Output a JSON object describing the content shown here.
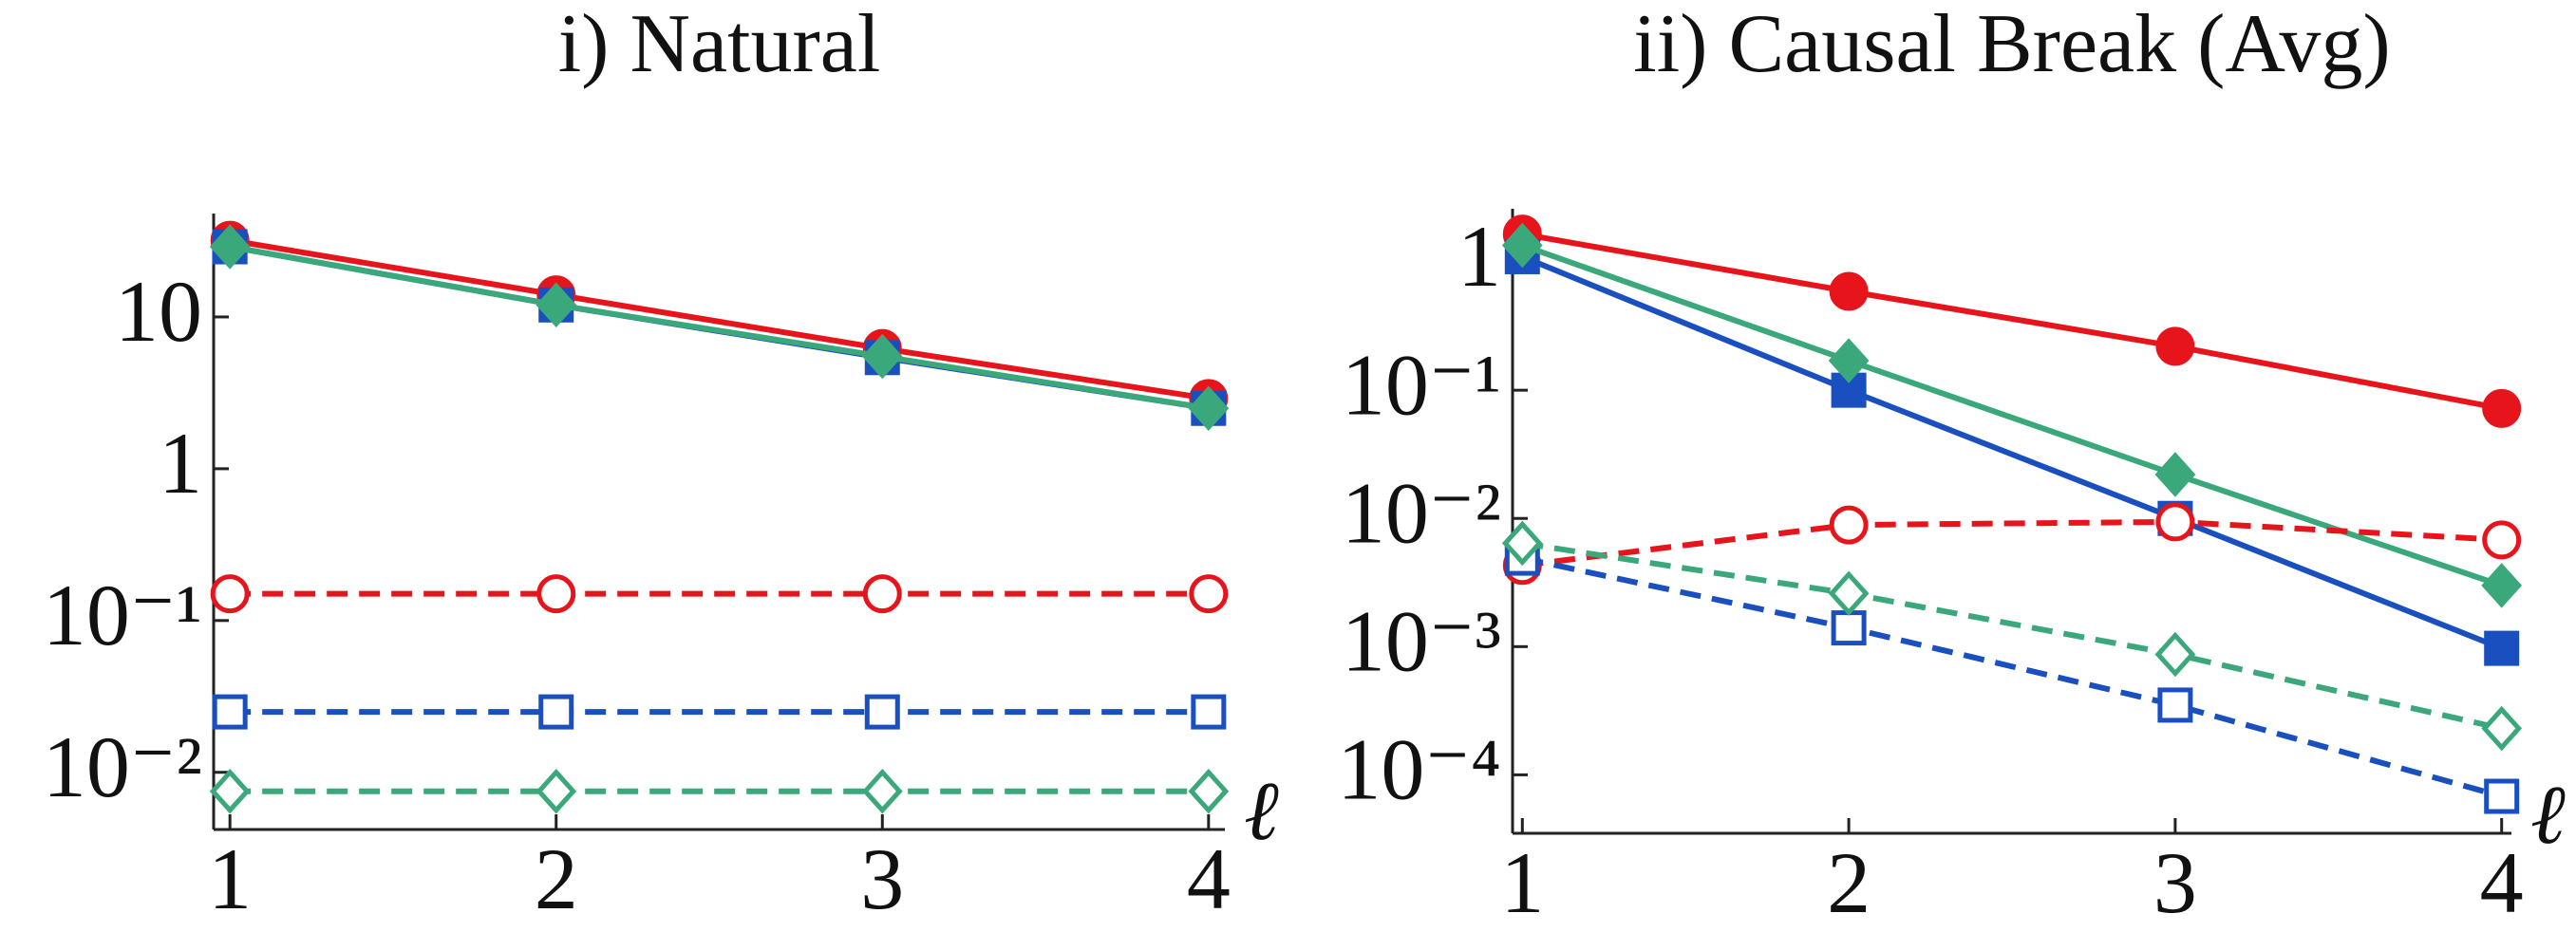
{
  "chart_data": [
    {
      "type": "line",
      "title": "i) Natural",
      "xlabel": "ℓ",
      "log_y": true,
      "x": [
        1,
        2,
        3,
        4
      ],
      "xlim": [
        0.95,
        4.05
      ],
      "xticks": [
        1,
        2,
        3,
        4
      ],
      "ylim": [
        0.0042,
        48
      ],
      "yticks": [
        10,
        1,
        {
          "value": 0.1,
          "label": "10⁻¹"
        },
        {
          "value": 0.01,
          "label": "10⁻²"
        }
      ],
      "series": [
        {
          "color": "#e8141c",
          "marker": "circle",
          "filled": true,
          "dash": false,
          "values": [
            32,
            14,
            6.2,
            2.9
          ]
        },
        {
          "color": "#1a4fbf",
          "marker": "square",
          "filled": true,
          "dash": false,
          "values": [
            29,
            12,
            5.4,
            2.5
          ]
        },
        {
          "color": "#3aa87a",
          "marker": "diamond",
          "filled": true,
          "dash": false,
          "values": [
            29,
            12,
            5.5,
            2.5
          ]
        },
        {
          "color": "#e8141c",
          "marker": "circle",
          "filled": false,
          "dash": true,
          "values": [
            0.15,
            0.15,
            0.15,
            0.15
          ]
        },
        {
          "color": "#1a4fbf",
          "marker": "square",
          "filled": false,
          "dash": true,
          "values": [
            0.025,
            0.025,
            0.025,
            0.025
          ]
        },
        {
          "color": "#3aa87a",
          "marker": "diamond",
          "filled": false,
          "dash": true,
          "values": [
            0.0075,
            0.0075,
            0.0075,
            0.0075
          ]
        }
      ]
    },
    {
      "type": "line",
      "title": "ii) Causal Break (Avg)",
      "xlabel": "ℓ",
      "log_y": true,
      "x": [
        1,
        2,
        3,
        4
      ],
      "xlim": [
        0.97,
        4.03
      ],
      "xticks": [
        1,
        2,
        3,
        4
      ],
      "ylim": [
        3.5e-05,
        2.6
      ],
      "yticks": [
        1,
        {
          "value": 0.1,
          "label": "10⁻¹"
        },
        {
          "value": 0.01,
          "label": "10⁻²"
        },
        {
          "value": 0.001,
          "label": "10⁻³"
        },
        {
          "value": 0.0001,
          "label": "10⁻⁴"
        }
      ],
      "series": [
        {
          "color": "#e8141c",
          "marker": "circle",
          "filled": true,
          "dash": false,
          "values": [
            1.65,
            0.59,
            0.22,
            0.072
          ]
        },
        {
          "color": "#1a4fbf",
          "marker": "square",
          "filled": true,
          "dash": false,
          "values": [
            1.1,
            0.1,
            0.01,
            0.00097
          ]
        },
        {
          "color": "#3aa87a",
          "marker": "diamond",
          "filled": true,
          "dash": false,
          "values": [
            1.35,
            0.17,
            0.022,
            0.003
          ]
        },
        {
          "color": "#e8141c",
          "marker": "circle",
          "filled": false,
          "dash": true,
          "values": [
            0.0043,
            0.0089,
            0.0094,
            0.0068
          ]
        },
        {
          "color": "#1a4fbf",
          "marker": "square",
          "filled": false,
          "dash": true,
          "values": [
            0.0049,
            0.0014,
            0.00035,
            6.8e-05
          ]
        },
        {
          "color": "#3aa87a",
          "marker": "diamond",
          "filled": false,
          "dash": true,
          "values": [
            0.0064,
            0.0026,
            0.00087,
            0.00023
          ]
        }
      ]
    }
  ]
}
